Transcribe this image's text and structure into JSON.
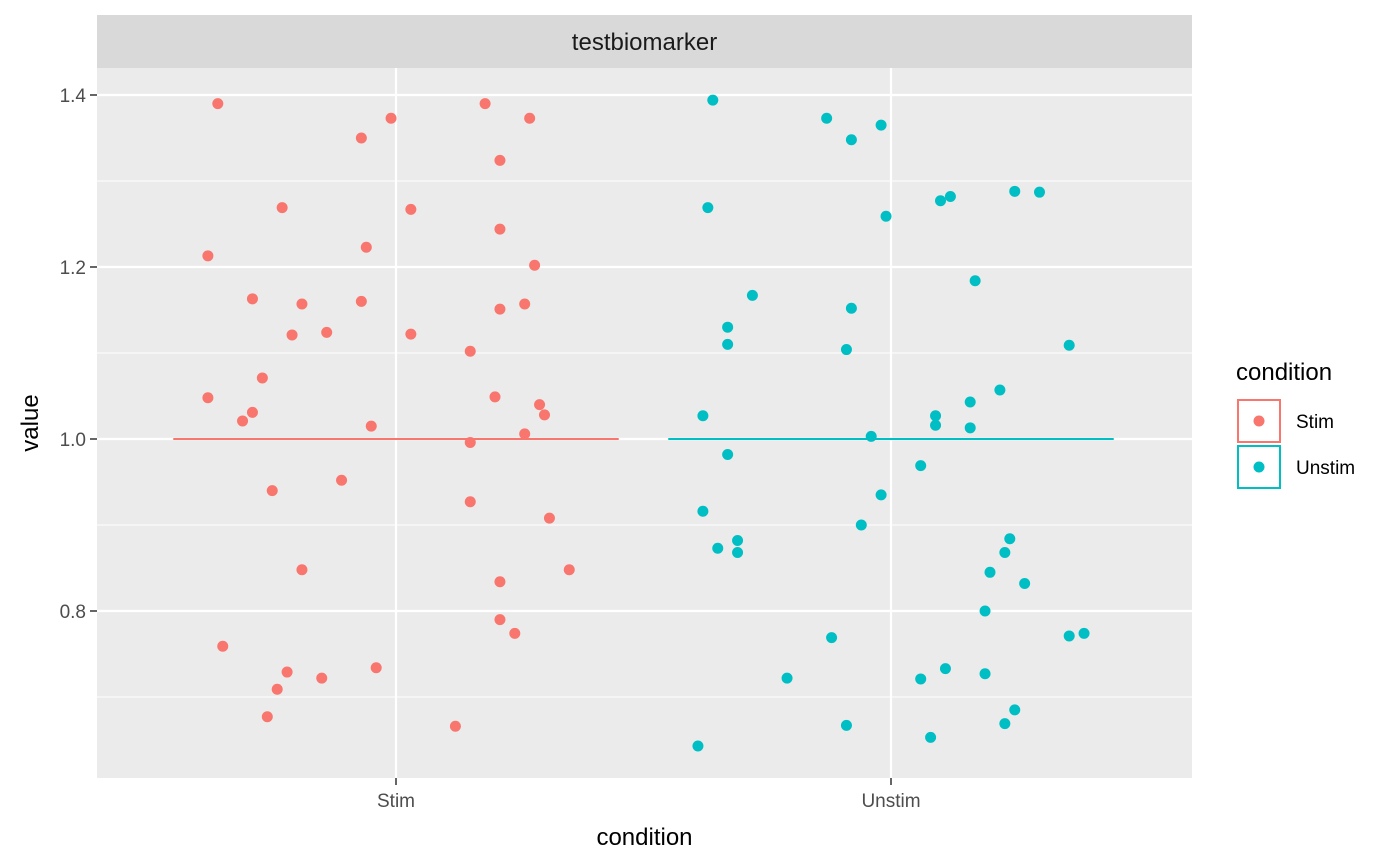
{
  "chart_data": {
    "type": "scatter",
    "facet_title": "testbiomarker",
    "xlabel": "condition",
    "ylabel": "value",
    "categories": [
      "Stim",
      "Unstim"
    ],
    "y_ticks": [
      "0.8",
      "1.0",
      "1.2",
      "1.4"
    ],
    "ylim": [
      0.605,
      1.41
    ],
    "grid": true,
    "legend": {
      "title": "condition",
      "position": "right",
      "entries": [
        "Stim",
        "Unstim"
      ]
    },
    "colors": {
      "Stim": "#F8766D",
      "Unstim": "#00BFC4",
      "panel": "#EBEBEB",
      "strip": "#D9D9D9"
    },
    "reference_lines": [
      {
        "category": "Stim",
        "value": 1.0
      },
      {
        "category": "Unstim",
        "value": 1.0
      }
    ],
    "series": [
      {
        "name": "Stim",
        "points": [
          [
            -0.36,
            1.39
          ],
          [
            -0.38,
            1.213
          ],
          [
            -0.29,
            1.163
          ],
          [
            -0.27,
            1.071
          ],
          [
            -0.38,
            1.048
          ],
          [
            -0.31,
            1.021
          ],
          [
            -0.29,
            1.031
          ],
          [
            -0.25,
            0.94
          ],
          [
            -0.23,
            1.269
          ],
          [
            -0.21,
            1.121
          ],
          [
            -0.19,
            1.157
          ],
          [
            -0.14,
            1.124
          ],
          [
            -0.19,
            0.848
          ],
          [
            -0.35,
            0.759
          ],
          [
            -0.22,
            0.729
          ],
          [
            -0.24,
            0.709
          ],
          [
            -0.26,
            0.677
          ],
          [
            -0.15,
            0.722
          ],
          [
            -0.11,
            0.952
          ],
          [
            -0.07,
            1.35
          ],
          [
            -0.01,
            1.373
          ],
          [
            -0.06,
            1.223
          ],
          [
            -0.07,
            1.16
          ],
          [
            -0.05,
            1.015
          ],
          [
            -0.04,
            0.734
          ],
          [
            0.03,
            1.122
          ],
          [
            0.03,
            1.267
          ],
          [
            0.18,
            1.39
          ],
          [
            0.21,
            1.324
          ],
          [
            0.27,
            1.373
          ],
          [
            0.21,
            1.244
          ],
          [
            0.28,
            1.202
          ],
          [
            0.21,
            1.151
          ],
          [
            0.26,
            1.157
          ],
          [
            0.15,
            1.102
          ],
          [
            0.2,
            1.049
          ],
          [
            0.29,
            1.04
          ],
          [
            0.3,
            1.028
          ],
          [
            0.26,
            1.006
          ],
          [
            0.15,
            0.996
          ],
          [
            0.15,
            0.927
          ],
          [
            0.31,
            0.908
          ],
          [
            0.35,
            0.848
          ],
          [
            0.21,
            0.834
          ],
          [
            0.21,
            0.79
          ],
          [
            0.24,
            0.774
          ],
          [
            0.12,
            0.666
          ]
        ]
      },
      {
        "name": "Unstim",
        "points": [
          [
            -0.36,
            1.394
          ],
          [
            -0.37,
            1.269
          ],
          [
            -0.28,
            1.167
          ],
          [
            -0.33,
            1.13
          ],
          [
            -0.33,
            1.11
          ],
          [
            -0.38,
            1.027
          ],
          [
            -0.33,
            0.982
          ],
          [
            -0.38,
            0.916
          ],
          [
            -0.35,
            0.873
          ],
          [
            -0.31,
            0.882
          ],
          [
            -0.31,
            0.868
          ],
          [
            -0.21,
            0.722
          ],
          [
            -0.39,
            0.643
          ],
          [
            -0.13,
            1.373
          ],
          [
            -0.08,
            1.348
          ],
          [
            -0.02,
            1.365
          ],
          [
            -0.08,
            1.152
          ],
          [
            -0.09,
            1.104
          ],
          [
            -0.04,
            1.003
          ],
          [
            -0.02,
            0.935
          ],
          [
            -0.06,
            0.9
          ],
          [
            -0.12,
            0.769
          ],
          [
            -0.09,
            0.667
          ],
          [
            -0.01,
            1.259
          ],
          [
            0.1,
            1.277
          ],
          [
            0.12,
            1.282
          ],
          [
            0.17,
            1.184
          ],
          [
            0.25,
            1.288
          ],
          [
            0.3,
            1.287
          ],
          [
            0.36,
            1.109
          ],
          [
            0.22,
            1.057
          ],
          [
            0.16,
            1.043
          ],
          [
            0.09,
            1.027
          ],
          [
            0.09,
            1.016
          ],
          [
            0.16,
            1.013
          ],
          [
            0.06,
            0.969
          ],
          [
            0.24,
            0.884
          ],
          [
            0.23,
            0.868
          ],
          [
            0.2,
            0.845
          ],
          [
            0.27,
            0.832
          ],
          [
            0.19,
            0.8
          ],
          [
            0.36,
            0.771
          ],
          [
            0.39,
            0.774
          ],
          [
            0.11,
            0.733
          ],
          [
            0.19,
            0.727
          ],
          [
            0.06,
            0.721
          ],
          [
            0.25,
            0.685
          ],
          [
            0.23,
            0.669
          ],
          [
            0.08,
            0.653
          ]
        ]
      }
    ]
  }
}
